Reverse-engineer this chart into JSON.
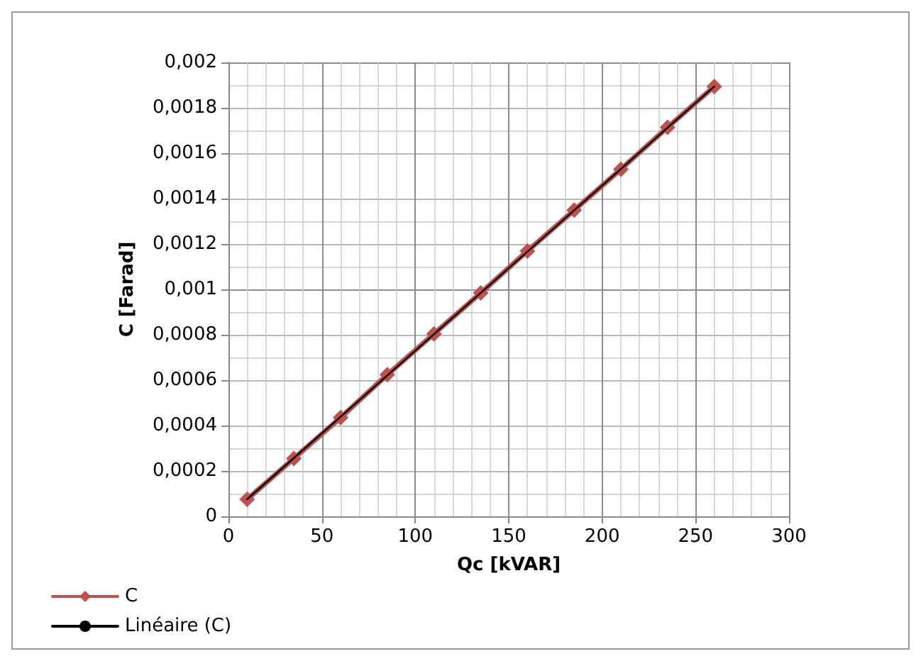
{
  "chart_data": {
    "type": "line",
    "xlabel": "Qc [kVAR]",
    "ylabel": "C [Farad]",
    "series": [
      {
        "name": "C",
        "color": "#c0504d",
        "marker": "diamond",
        "x": [
          10,
          35,
          60,
          85,
          110,
          135,
          160,
          185,
          210,
          235,
          260
        ],
        "values": [
          7.5e-05,
          0.000255,
          0.000435,
          0.000624,
          0.000804,
          0.000984,
          0.001169,
          0.001349,
          0.001529,
          0.001714,
          0.001894
        ]
      },
      {
        "name": "Linéaire (C)",
        "color": "#000000",
        "marker": "none",
        "x": [
          10,
          260
        ],
        "values": [
          7.5e-05,
          0.001894
        ]
      }
    ],
    "xlim": [
      0,
      300
    ],
    "xticks": [
      0,
      50,
      100,
      150,
      200,
      250,
      300
    ],
    "ylim": [
      0,
      0.002
    ],
    "yticks": [
      0,
      {
        "value": 0.0002,
        "label": "0,0002"
      },
      {
        "value": 0.0004,
        "label": "0,0004"
      },
      {
        "value": 0.0006,
        "label": "0,0006"
      },
      {
        "value": 0.0008,
        "label": "0,0008"
      },
      {
        "value": 0.001,
        "label": "0,001"
      },
      {
        "value": 0.0012,
        "label": "0,0012"
      },
      {
        "value": 0.0014,
        "label": "0,0014"
      },
      {
        "value": 0.0016,
        "label": "0,0016"
      },
      {
        "value": 0.0018,
        "label": "0,0018"
      },
      {
        "value": 0.002,
        "label": "0,002"
      }
    ],
    "grid": true,
    "legend": "bottom left",
    "line_style": "solid"
  }
}
